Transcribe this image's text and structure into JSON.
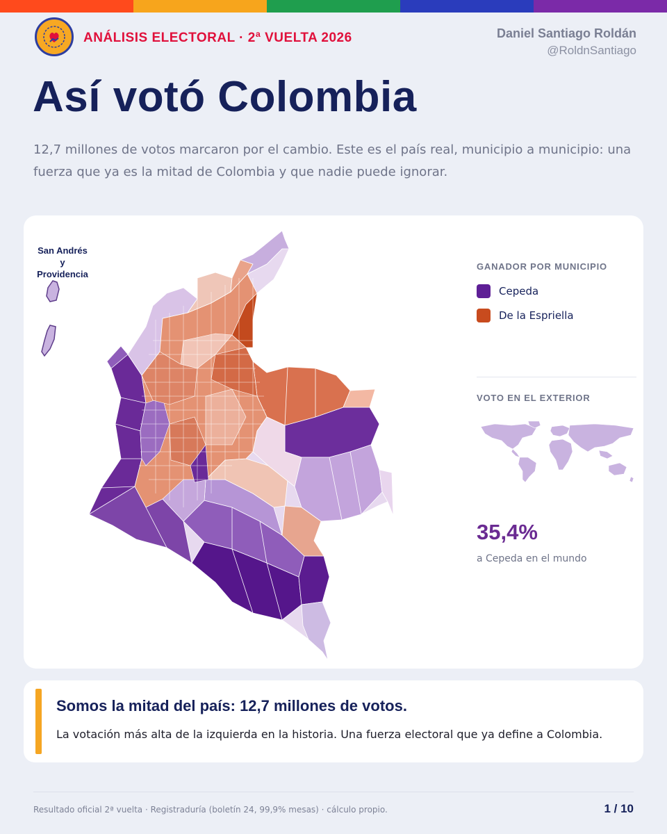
{
  "colors": {
    "stripes": [
      "#ff4a1c",
      "#f7a51c",
      "#1f9e4e",
      "#2a3cbc",
      "#7b2aa8"
    ],
    "cepeda": "#5e1f96",
    "espriella": "#c84b1e",
    "accent": "#f5a623"
  },
  "header": {
    "logo_icon": "heart-hand-icon",
    "kicker": "ANÁLISIS ELECTORAL · 2ª VUELTA 2026",
    "author_name": "Daniel Santiago Roldán",
    "author_handle": "@RoldnSantiago"
  },
  "title": "Así votó Colombia",
  "lede": "12,7 millones de votos marcaron por el cambio. Este es el país real, municipio a municipio: una fuerza que ya es la mitad de Colombia y que nadie puede ignorar.",
  "map": {
    "islands_label_line1": "San Andrés",
    "islands_label_line2": "y Providencia",
    "legend_title": "GANADOR POR MUNICIPIO",
    "legend": [
      {
        "label": "Cepeda",
        "color": "#5e1f96"
      },
      {
        "label": "De la Espriella",
        "color": "#c84b1e"
      }
    ],
    "exterior_title": "VOTO EN EL EXTERIOR",
    "exterior_pct": "35,4%",
    "exterior_sub": "a Cepeda en el mundo"
  },
  "callout": {
    "headline": "Somos la mitad del país: 12,7 millones de votos.",
    "body": "La votación más alta de la izquierda en la historia. Una fuerza electoral que ya define a Colombia."
  },
  "footer": {
    "source": "Resultado oficial 2ª vuelta · Registraduría (boletín 24, 99,9% mesas) · cálculo propio.",
    "page": "1 / 10"
  }
}
